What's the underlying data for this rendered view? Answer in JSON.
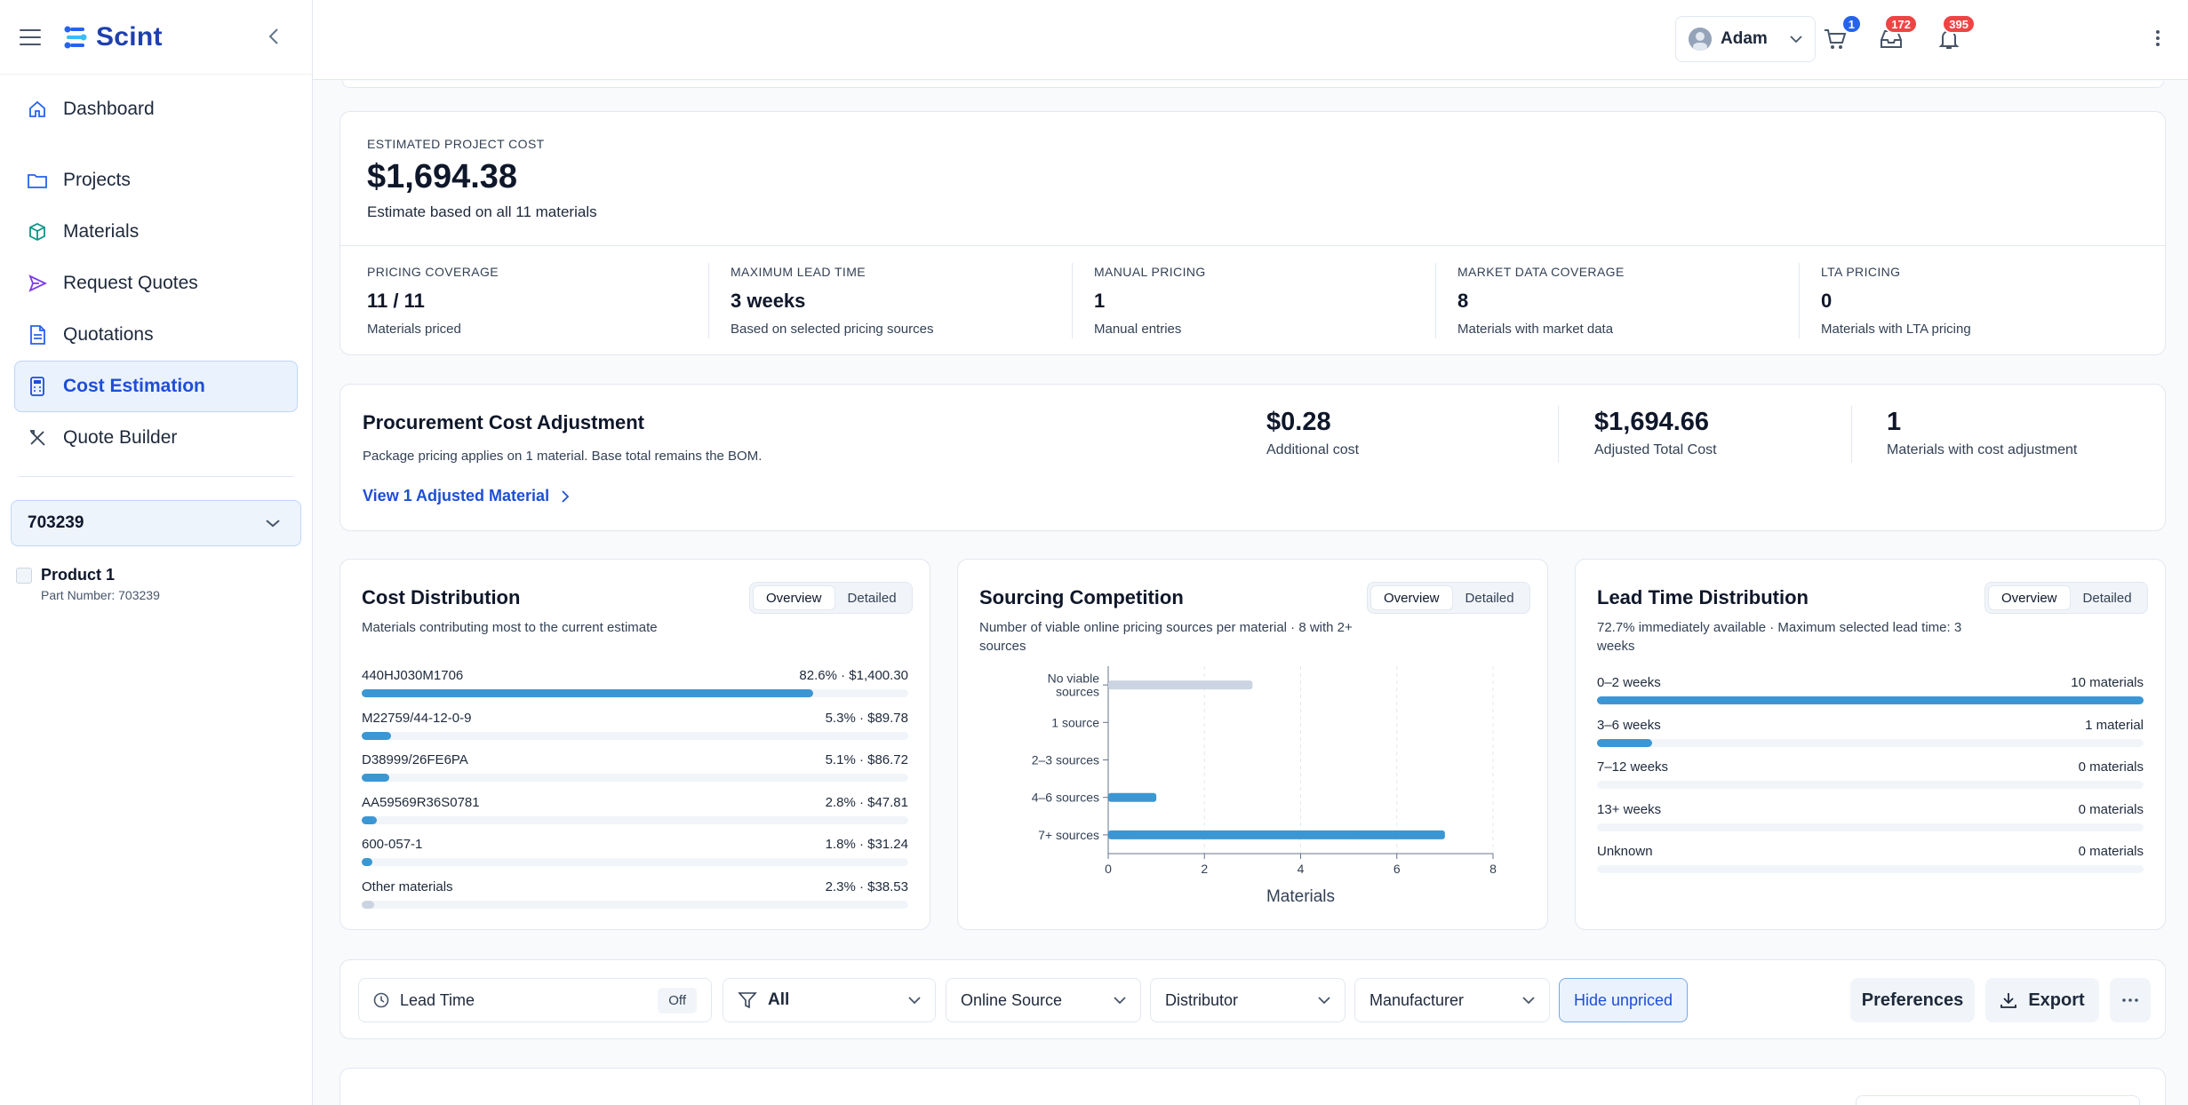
{
  "app": {
    "name": "Scint"
  },
  "sidebar": {
    "items": [
      {
        "label": "Dashboard"
      },
      {
        "label": "Projects"
      },
      {
        "label": "Materials"
      },
      {
        "label": "Request Quotes"
      },
      {
        "label": "Quotations"
      },
      {
        "label": "Cost Estimation"
      },
      {
        "label": "Quote Builder"
      }
    ],
    "project_select": "703239",
    "product": {
      "name": "Product 1",
      "part_number": "Part Number: 703239"
    }
  },
  "topbar": {
    "cart_count": "1",
    "inbox_count": "172",
    "notifications_count": "395",
    "user_name": "Adam"
  },
  "estimate": {
    "label": "ESTIMATED PROJECT COST",
    "value": "$1,694.38",
    "note": "Estimate based on all 11 materials",
    "stats": [
      {
        "label": "PRICING COVERAGE",
        "value": "11 / 11",
        "sub": "Materials priced"
      },
      {
        "label": "MAXIMUM LEAD TIME",
        "value": "3 weeks",
        "sub": "Based on selected pricing sources"
      },
      {
        "label": "MANUAL PRICING",
        "value": "1",
        "sub": "Manual entries"
      },
      {
        "label": "MARKET DATA COVERAGE",
        "value": "8",
        "sub": "Materials with market data"
      },
      {
        "label": "LTA PRICING",
        "value": "0",
        "sub": "Materials with LTA pricing"
      }
    ]
  },
  "adjustment": {
    "title": "Procurement Cost Adjustment",
    "desc": "Package pricing applies on 1 material. Base total remains the BOM.",
    "link": "View 1 Adjusted Material",
    "stats": [
      {
        "value": "$0.28",
        "label": "Additional cost"
      },
      {
        "value": "$1,694.66",
        "label": "Adjusted Total Cost"
      },
      {
        "value": "1",
        "label": "Materials with cost adjustment"
      }
    ]
  },
  "toggle": {
    "overview": "Overview",
    "detailed": "Detailed"
  },
  "cost_distribution": {
    "title": "Cost Distribution",
    "subtitle": "Materials contributing most to the current estimate",
    "rows": [
      {
        "label": "440HJ030M1706",
        "value": "82.6% · $1,400.30",
        "pct": 82.6
      },
      {
        "label": "M22759/44-12-0-9",
        "value": "5.3% · $89.78",
        "pct": 5.3
      },
      {
        "label": "D38999/26FE6PA",
        "value": "5.1% · $86.72",
        "pct": 5.1
      },
      {
        "label": "AA59569R36S0781",
        "value": "2.8% · $47.81",
        "pct": 2.8
      },
      {
        "label": "600-057-1",
        "value": "1.8% · $31.24",
        "pct": 1.8
      },
      {
        "label": "Other materials",
        "value": "2.3% · $38.53",
        "pct": 2.3
      }
    ]
  },
  "sourcing": {
    "title": "Sourcing Competition",
    "subtitle": "Number of viable online pricing sources per material · 8 with 2+ sources"
  },
  "chart_data": {
    "type": "bar",
    "orientation": "horizontal",
    "categories": [
      "No viable sources",
      "1 source",
      "2–3 sources",
      "4–6 sources",
      "7+ sources"
    ],
    "values": [
      3,
      0,
      0,
      1,
      7
    ],
    "xlabel": "Materials",
    "xlim": [
      0,
      8
    ],
    "xticks": [
      "0",
      "2",
      "4",
      "6",
      "8"
    ],
    "grid": "vertical dashed",
    "colors": {
      "primary": "#3b97d3",
      "none": "#cbd5e1"
    }
  },
  "lead_time": {
    "title": "Lead Time Distribution",
    "subtitle": "72.7% immediately available · Maximum selected lead time: 3 weeks",
    "rows": [
      {
        "label": "0–2 weeks",
        "value": "10 materials",
        "pct": 100
      },
      {
        "label": "3–6 weeks",
        "value": "1 material",
        "pct": 10
      },
      {
        "label": "7–12 weeks",
        "value": "0 materials",
        "pct": 0
      },
      {
        "label": "13+ weeks",
        "value": "0 materials",
        "pct": 0
      },
      {
        "label": "Unknown",
        "value": "0 materials",
        "pct": 0
      }
    ]
  },
  "filters": {
    "lead_time": "Lead Time",
    "lead_time_state": "Off",
    "scope": "All",
    "online_source": "Online Source",
    "distributor": "Distributor",
    "manufacturer": "Manufacturer",
    "hide_unpriced": "Hide unpriced",
    "preferences": "Preferences",
    "export": "Export"
  },
  "colors": {
    "accent": "#1d4ed8",
    "bar": "#3b97d3",
    "badge_red": "#ef4444",
    "badge_blue": "#2563eb"
  }
}
